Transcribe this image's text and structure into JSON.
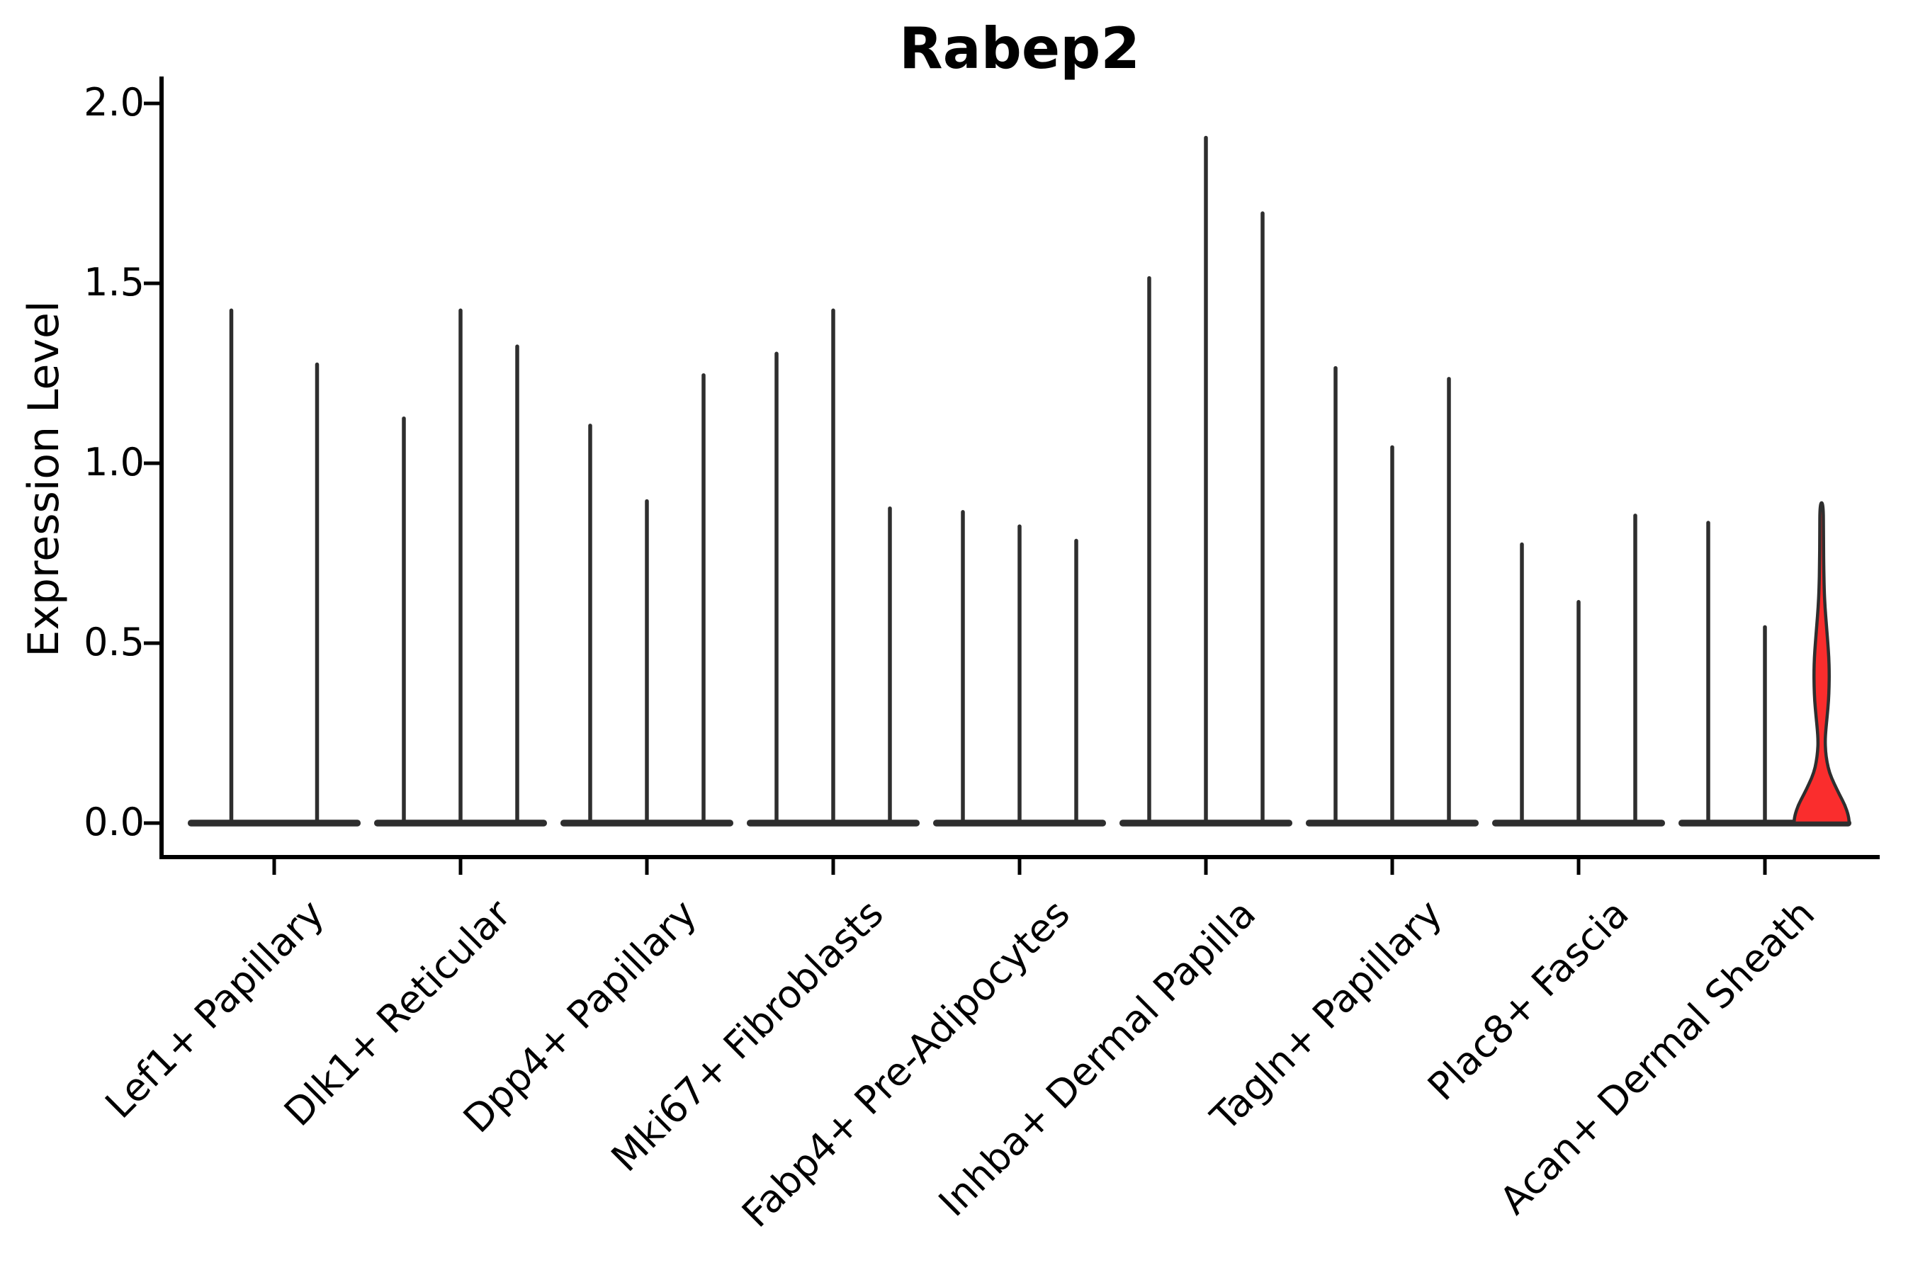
{
  "figure": {
    "background": "#ffffff"
  },
  "chart_data": {
    "type": "violin",
    "title": "Rabep2",
    "ylabel": "Expression Level",
    "xlabel": "",
    "ylim": [
      -0.09,
      2.07
    ],
    "grid": false,
    "legend": "none",
    "yticks": [
      {
        "label": "0.0",
        "value": 0.0
      },
      {
        "label": "0.5",
        "value": 0.5
      },
      {
        "label": "1.0",
        "value": 1.0
      },
      {
        "label": "1.5",
        "value": 1.5
      },
      {
        "label": "2.0",
        "value": 2.0
      }
    ],
    "categories": [
      "Lef1+ Papillary",
      "Dlk1+ Reticular",
      "Dpp4+ Papillary",
      "Mki67+ Fibroblasts",
      "Fabp4+ Pre-Adipocytes",
      "Inhba+ Dermal Papilla",
      "Tagln+ Papillary",
      "Plac8+ Fascia",
      "Acan+ Dermal Sheath"
    ],
    "groups": [
      {
        "label": "Lef1+ Papillary",
        "violins": [
          {
            "max": 1.43
          },
          {
            "max": 1.28
          }
        ]
      },
      {
        "label": "Dlk1+ Reticular",
        "violins": [
          {
            "max": 1.13
          },
          {
            "max": 1.43
          },
          {
            "max": 1.33
          }
        ]
      },
      {
        "label": "Dpp4+ Papillary",
        "violins": [
          {
            "max": 1.11
          },
          {
            "max": 0.9
          },
          {
            "max": 1.25
          }
        ]
      },
      {
        "label": "Mki67+ Fibroblasts",
        "violins": [
          {
            "max": 1.31
          },
          {
            "max": 1.43
          },
          {
            "max": 0.88
          }
        ]
      },
      {
        "label": "Fabp4+ Pre-Adipocytes",
        "violins": [
          {
            "max": 0.87
          },
          {
            "max": 0.83
          },
          {
            "max": 0.79
          }
        ]
      },
      {
        "label": "Inhba+ Dermal Papilla",
        "violins": [
          {
            "max": 1.52
          },
          {
            "max": 1.91
          },
          {
            "max": 1.7
          }
        ]
      },
      {
        "label": "Tagln+ Papillary",
        "violins": [
          {
            "max": 1.27
          },
          {
            "max": 1.05
          },
          {
            "max": 1.24
          }
        ]
      },
      {
        "label": "Plac8+ Fascia",
        "violins": [
          {
            "max": 0.78
          },
          {
            "max": 0.62
          },
          {
            "max": 0.86
          }
        ]
      },
      {
        "label": "Acan+ Dermal Sheath",
        "violins": [
          {
            "max": 0.84
          },
          {
            "max": 0.55
          },
          {
            "max": 0.88,
            "highlight": true
          }
        ]
      }
    ],
    "highlight_violin": {
      "group": "Acan+ Dermal Sheath",
      "max": 0.88,
      "profile": [
        [
          0.0,
          39
        ],
        [
          0.02,
          38
        ],
        [
          0.05,
          33
        ],
        [
          0.08,
          25
        ],
        [
          0.11,
          17.5
        ],
        [
          0.14,
          11
        ],
        [
          0.17,
          7.5
        ],
        [
          0.2,
          5.5
        ],
        [
          0.23,
          5.0
        ],
        [
          0.26,
          6.0
        ],
        [
          0.3,
          8.0
        ],
        [
          0.34,
          9.8
        ],
        [
          0.38,
          10.6
        ],
        [
          0.42,
          10.8
        ],
        [
          0.46,
          10.2
        ],
        [
          0.5,
          8.8
        ],
        [
          0.55,
          6.8
        ],
        [
          0.6,
          4.8
        ],
        [
          0.65,
          3.6
        ],
        [
          0.72,
          2.9
        ],
        [
          0.8,
          2.6
        ],
        [
          0.89,
          2.4
        ]
      ]
    },
    "colors": {
      "violin": "#2e2e2e",
      "highlight_fill": "#fa2d2d",
      "highlight_stroke": "#2e2e2e",
      "axis": "#000000",
      "text": "#000000",
      "background": "#ffffff"
    }
  }
}
